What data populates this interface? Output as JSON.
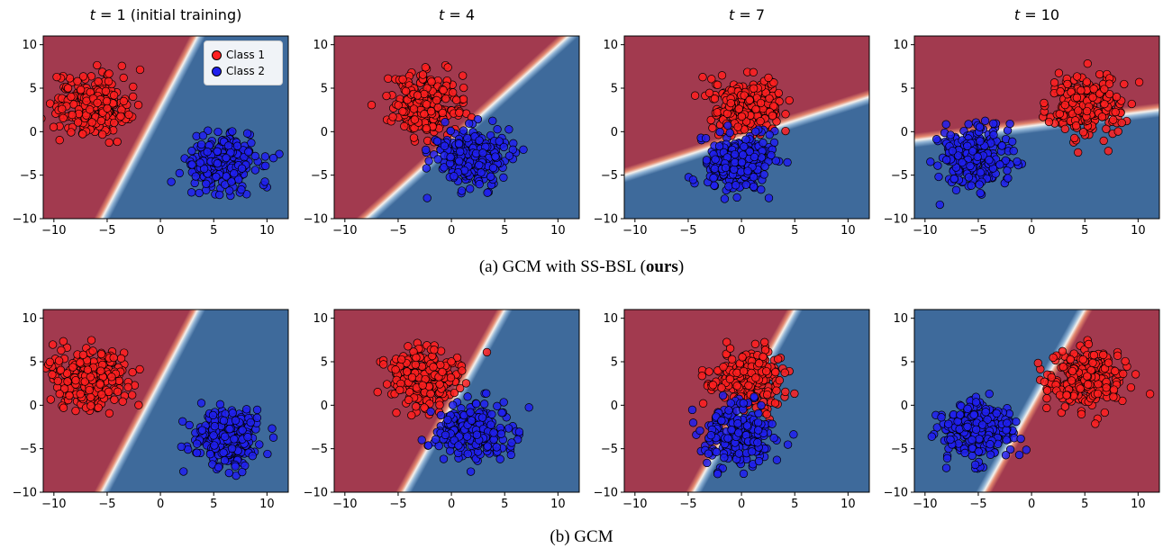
{
  "figure": {
    "row_a_caption": {
      "prefix": "(a) GCM with SS-BSL (",
      "bold": "ours",
      "suffix": ")"
    },
    "row_b_caption": "(b) GCM",
    "legend": {
      "class1": "Class 1",
      "class2": "Class 2"
    },
    "class_colors": {
      "class1": "#ff2020",
      "class2": "#2020ee",
      "region1": "#a23a4f",
      "region2": "#3e6a9b"
    }
  },
  "chart_data": [
    {
      "type": "scatter",
      "row": "a",
      "title": "t = 1 (initial training)",
      "xlim": [
        -11,
        12
      ],
      "ylim": [
        -10,
        11
      ],
      "xticks": [
        -10,
        -5,
        0,
        5,
        10
      ],
      "yticks": [
        -10,
        -5,
        0,
        5,
        10
      ],
      "series": [
        {
          "name": "Class 1",
          "center": [
            -6.5,
            3
          ],
          "spread": 1.7
        },
        {
          "name": "Class 2",
          "center": [
            6,
            -3.5
          ],
          "spread": 1.6
        }
      ],
      "boundary_points": [
        [
          -5.5,
          -10
        ],
        [
          3.5,
          11
        ]
      ]
    },
    {
      "type": "scatter",
      "row": "a",
      "title": "t = 4",
      "xlim": [
        -11,
        12
      ],
      "ylim": [
        -10,
        11
      ],
      "xticks": [
        -10,
        -5,
        0,
        5,
        10
      ],
      "yticks": [
        -10,
        -5,
        0,
        5,
        10
      ],
      "series": [
        {
          "name": "Class 1",
          "center": [
            -2.5,
            3.2
          ],
          "spread": 1.7
        },
        {
          "name": "Class 2",
          "center": [
            2,
            -3
          ],
          "spread": 1.7
        }
      ],
      "boundary_points": [
        [
          -8,
          -10
        ],
        [
          11,
          11
        ]
      ]
    },
    {
      "type": "scatter",
      "row": "a",
      "title": "t = 7",
      "xlim": [
        -11,
        12
      ],
      "ylim": [
        -10,
        11
      ],
      "xticks": [
        -10,
        -5,
        0,
        5,
        10
      ],
      "yticks": [
        -10,
        -5,
        0,
        5,
        10
      ],
      "series": [
        {
          "name": "Class 1",
          "center": [
            0.5,
            3
          ],
          "spread": 1.6
        },
        {
          "name": "Class 2",
          "center": [
            -0.5,
            -3.5
          ],
          "spread": 1.6
        }
      ],
      "boundary_points": [
        [
          -11,
          -5
        ],
        [
          12,
          4
        ]
      ]
    },
    {
      "type": "scatter",
      "row": "a",
      "title": "t = 10",
      "xlim": [
        -11,
        12
      ],
      "ylim": [
        -10,
        11
      ],
      "xticks": [
        -10,
        -5,
        0,
        5,
        10
      ],
      "yticks": [
        -10,
        -5,
        0,
        5,
        10
      ],
      "series": [
        {
          "name": "Class 1",
          "center": [
            5,
            3
          ],
          "spread": 1.7
        },
        {
          "name": "Class 2",
          "center": [
            -5,
            -3
          ],
          "spread": 1.7
        }
      ],
      "boundary_points": [
        [
          -11,
          -1
        ],
        [
          12,
          2.5
        ]
      ]
    },
    {
      "type": "scatter",
      "row": "b",
      "title": "",
      "xlim": [
        -11,
        12
      ],
      "ylim": [
        -10,
        11
      ],
      "xticks": [
        -10,
        -5,
        0,
        5,
        10
      ],
      "yticks": [
        -10,
        -5,
        0,
        5,
        10
      ],
      "series": [
        {
          "name": "Class 1",
          "center": [
            -6.5,
            3
          ],
          "spread": 1.7
        },
        {
          "name": "Class 2",
          "center": [
            6,
            -3.5
          ],
          "spread": 1.6
        }
      ],
      "boundary_points": [
        [
          -5.5,
          -10
        ],
        [
          3.5,
          11
        ]
      ]
    },
    {
      "type": "scatter",
      "row": "b",
      "title": "",
      "xlim": [
        -11,
        12
      ],
      "ylim": [
        -10,
        11
      ],
      "xticks": [
        -10,
        -5,
        0,
        5,
        10
      ],
      "yticks": [
        -10,
        -5,
        0,
        5,
        10
      ],
      "series": [
        {
          "name": "Class 1",
          "center": [
            -2.5,
            3.2
          ],
          "spread": 1.7
        },
        {
          "name": "Class 2",
          "center": [
            2,
            -3
          ],
          "spread": 1.7
        }
      ],
      "boundary_points": [
        [
          -4.5,
          -10
        ],
        [
          5,
          11
        ]
      ]
    },
    {
      "type": "scatter",
      "row": "b",
      "title": "",
      "xlim": [
        -11,
        12
      ],
      "ylim": [
        -10,
        11
      ],
      "xticks": [
        -10,
        -5,
        0,
        5,
        10
      ],
      "yticks": [
        -10,
        -5,
        0,
        5,
        10
      ],
      "series": [
        {
          "name": "Class 1",
          "center": [
            0.5,
            3
          ],
          "spread": 1.6
        },
        {
          "name": "Class 2",
          "center": [
            -0.5,
            -3.5
          ],
          "spread": 1.6
        }
      ],
      "boundary_points": [
        [
          -4.5,
          -10
        ],
        [
          5,
          11
        ]
      ]
    },
    {
      "type": "scatter",
      "row": "b",
      "title": "",
      "xlim": [
        -11,
        12
      ],
      "ylim": [
        -10,
        11
      ],
      "xticks": [
        -10,
        -5,
        0,
        5,
        10
      ],
      "yticks": [
        -10,
        -5,
        0,
        5,
        10
      ],
      "series": [
        {
          "name": "Class 1",
          "center": [
            5,
            3
          ],
          "spread": 1.7
        },
        {
          "name": "Class 2",
          "center": [
            -5,
            -3
          ],
          "spread": 1.7
        }
      ],
      "boundary_points": [
        [
          -4.5,
          -10
        ],
        [
          5,
          11
        ]
      ]
    }
  ]
}
